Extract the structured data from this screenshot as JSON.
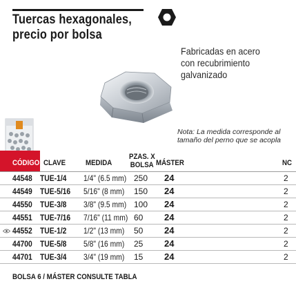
{
  "title": {
    "line1": "Tuercas hexagonales,",
    "line2": "precio por bolsa"
  },
  "description": {
    "line1": "Fabricadas en acero",
    "line2": "con recubrimiento",
    "line3": "galvanizado"
  },
  "note": {
    "line1": "Nota: La medida corresponde al",
    "line2": "tamaño del perno que se acopla"
  },
  "icons": {
    "header": "hexagon-nut-icon",
    "row_marker": "eye-icon"
  },
  "colors": {
    "accent": "#d4142a",
    "text": "#1a1a1a"
  },
  "table": {
    "headers": {
      "codigo": "CÓDIGO",
      "clave": "CLAVE",
      "medida": "MEDIDA",
      "pzas_line1": "PZAS. X",
      "pzas_line2": "BOLSA",
      "master": "MÁSTER",
      "nc": "NC"
    },
    "rows": [
      {
        "codigo": "44548",
        "clave": "TUE-1/4",
        "medida": "1/4\" (6.5 mm)",
        "pzas": "250",
        "master": "24",
        "nc": "2"
      },
      {
        "codigo": "44549",
        "clave": "TUE-5/16",
        "medida": "5/16\" (8 mm)",
        "pzas": "150",
        "master": "24",
        "nc": "2"
      },
      {
        "codigo": "44550",
        "clave": "TUE-3/8",
        "medida": "3/8\" (9.5 mm)",
        "pzas": "100",
        "master": "24",
        "nc": "2"
      },
      {
        "codigo": "44551",
        "clave": "TUE-7/16",
        "medida": "7/16\" (11 mm)",
        "pzas": "60",
        "master": "24",
        "nc": "2"
      },
      {
        "codigo": "44552",
        "clave": "TUE-1/2",
        "medida": "1/2\" (13 mm)",
        "pzas": "50",
        "master": "24",
        "nc": "2"
      },
      {
        "codigo": "44700",
        "clave": "TUE-5/8",
        "medida": "5/8\" (16 mm)",
        "pzas": "25",
        "master": "24",
        "nc": "2"
      },
      {
        "codigo": "44701",
        "clave": "TUE-3/4",
        "medida": "3/4\" (19 mm)",
        "pzas": "15",
        "master": "24",
        "nc": "2"
      }
    ]
  },
  "footer": "BOLSA 6 / MÁSTER CONSULTE TABLA"
}
